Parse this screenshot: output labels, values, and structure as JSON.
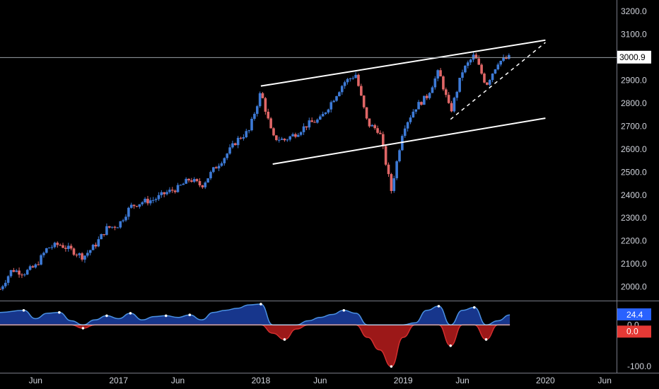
{
  "chart_data": [
    {
      "type": "candlestick",
      "title": "",
      "y_ticks": [
        "3200.0",
        "3100.0",
        "3000.0",
        "2900.0",
        "2800.0",
        "2700.0",
        "2600.0",
        "2500.0",
        "2400.0",
        "2300.0",
        "2200.0",
        "2100.0",
        "2000.0"
      ],
      "ylim": [
        1940,
        3250
      ],
      "x_ticks": [
        "Jun",
        "2017",
        "Jun",
        "2018",
        "Jun",
        "2019",
        "Jun",
        "2020",
        "Jun"
      ],
      "x_tick_dates": [
        "2016-06",
        "2017-01",
        "2017-06",
        "2018-01",
        "2018-06",
        "2019-01",
        "2019-06",
        "2020-01",
        "2020-06"
      ],
      "xlim": [
        "2016-03",
        "2020-07"
      ],
      "last_price": "3000.9",
      "up_color": "#3d7ad6",
      "down_color": "#e06666",
      "path": [
        [
          "2016-03",
          1990
        ],
        [
          "2016-04",
          2075
        ],
        [
          "2016-05",
          2060
        ],
        [
          "2016-06",
          2090
        ],
        [
          "2016-07",
          2170
        ],
        [
          "2016-08",
          2185
        ],
        [
          "2016-09",
          2160
        ],
        [
          "2016-10",
          2130
        ],
        [
          "2016-11",
          2180
        ],
        [
          "2016-12",
          2255
        ],
        [
          "2017-01",
          2270
        ],
        [
          "2017-02",
          2350
        ],
        [
          "2017-03",
          2370
        ],
        [
          "2017-04",
          2380
        ],
        [
          "2017-05",
          2410
        ],
        [
          "2017-06",
          2430
        ],
        [
          "2017-07",
          2470
        ],
        [
          "2017-08",
          2440
        ],
        [
          "2017-09",
          2510
        ],
        [
          "2017-10",
          2570
        ],
        [
          "2017-11",
          2640
        ],
        [
          "2017-12",
          2680
        ],
        [
          "2018-01",
          2850
        ],
        [
          "2018-02",
          2650
        ],
        [
          "2018-03",
          2640
        ],
        [
          "2018-04",
          2670
        ],
        [
          "2018-05",
          2710
        ],
        [
          "2018-06",
          2730
        ],
        [
          "2018-07",
          2810
        ],
        [
          "2018-08",
          2890
        ],
        [
          "2018-09",
          2925
        ],
        [
          "2018-10",
          2710
        ],
        [
          "2018-11",
          2680
        ],
        [
          "2018-12",
          2420
        ],
        [
          "2019-01",
          2690
        ],
        [
          "2019-02",
          2780
        ],
        [
          "2019-03",
          2830
        ],
        [
          "2019-04",
          2940
        ],
        [
          "2019-05",
          2760
        ],
        [
          "2019-06",
          2940
        ],
        [
          "2019-07",
          3010
        ],
        [
          "2019-08",
          2880
        ],
        [
          "2019-09",
          2980
        ],
        [
          "2019-10",
          3000
        ]
      ],
      "lines": [
        {
          "label": "channel-top",
          "style": "solid",
          "points": [
            [
              "2018-01",
              2875
            ],
            [
              "2020-01",
              3075
            ]
          ]
        },
        {
          "label": "channel-bottom",
          "style": "solid",
          "points": [
            [
              "2018-02",
              2535
            ],
            [
              "2020-01",
              2735
            ]
          ]
        },
        {
          "label": "support-trend",
          "style": "dashed",
          "points": [
            [
              "2019-05",
              2730
            ],
            [
              "2020-01",
              3065
            ]
          ]
        }
      ],
      "grid": false
    },
    {
      "type": "area",
      "y_ticks": [
        "0.0",
        "-100.0"
      ],
      "ylim": [
        -115,
        55
      ],
      "current_value": "24.4",
      "zero_label": "0.0",
      "pos_color": "#2962ff",
      "neg_color": "#b71c1c",
      "values": [
        [
          "2016-03",
          30
        ],
        [
          "2016-05",
          35
        ],
        [
          "2016-06",
          15
        ],
        [
          "2016-07",
          28
        ],
        [
          "2016-08",
          30
        ],
        [
          "2016-09",
          10
        ],
        [
          "2016-10",
          -8
        ],
        [
          "2016-11",
          12
        ],
        [
          "2016-12",
          22
        ],
        [
          "2017-01",
          15
        ],
        [
          "2017-02",
          28
        ],
        [
          "2017-03",
          12
        ],
        [
          "2017-04",
          20
        ],
        [
          "2017-05",
          22
        ],
        [
          "2017-06",
          18
        ],
        [
          "2017-07",
          24
        ],
        [
          "2017-08",
          12
        ],
        [
          "2017-09",
          30
        ],
        [
          "2017-10",
          35
        ],
        [
          "2017-11",
          40
        ],
        [
          "2017-12",
          48
        ],
        [
          "2018-01",
          50
        ],
        [
          "2018-02",
          -20
        ],
        [
          "2018-03",
          -35
        ],
        [
          "2018-04",
          -10
        ],
        [
          "2018-05",
          10
        ],
        [
          "2018-06",
          18
        ],
        [
          "2018-07",
          25
        ],
        [
          "2018-08",
          35
        ],
        [
          "2018-09",
          28
        ],
        [
          "2018-10",
          -30
        ],
        [
          "2018-11",
          -60
        ],
        [
          "2018-12",
          -100
        ],
        [
          "2019-01",
          -30
        ],
        [
          "2019-02",
          5
        ],
        [
          "2019-03",
          35
        ],
        [
          "2019-04",
          45
        ],
        [
          "2019-05",
          -50
        ],
        [
          "2019-06",
          35
        ],
        [
          "2019-07",
          42
        ],
        [
          "2019-08",
          -35
        ],
        [
          "2019-09",
          10
        ],
        [
          "2019-10",
          24
        ]
      ]
    }
  ]
}
